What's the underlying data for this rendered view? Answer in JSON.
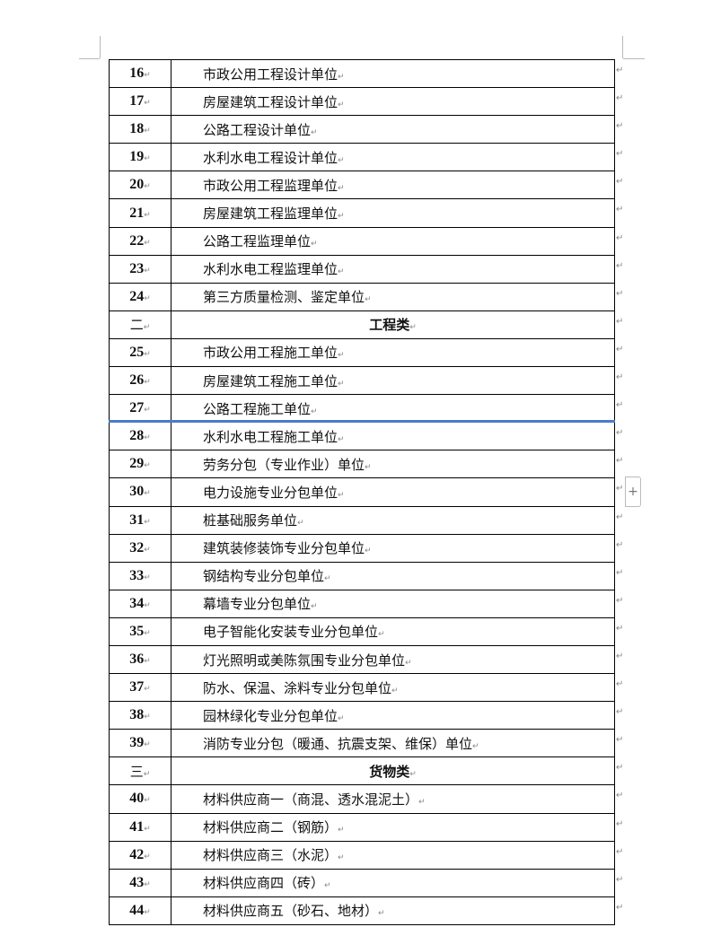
{
  "rows": [
    {
      "num": "16",
      "name": "市政公用工程设计单位"
    },
    {
      "num": "17",
      "name": "房屋建筑工程设计单位"
    },
    {
      "num": "18",
      "name": "公路工程设计单位"
    },
    {
      "num": "19",
      "name": "水利水电工程设计单位"
    },
    {
      "num": "20",
      "name": "市政公用工程监理单位"
    },
    {
      "num": "21",
      "name": "房屋建筑工程监理单位"
    },
    {
      "num": "22",
      "name": "公路工程监理单位"
    },
    {
      "num": "23",
      "name": "水利水电工程监理单位"
    },
    {
      "num": "24",
      "name": "第三方质量检测、鉴定单位"
    },
    {
      "num": "二",
      "name": "工程类",
      "section": true
    },
    {
      "num": "25",
      "name": "市政公用工程施工单位"
    },
    {
      "num": "26",
      "name": "房屋建筑工程施工单位"
    },
    {
      "num": "27",
      "name": "公路工程施工单位"
    },
    {
      "num": "28",
      "name": "水利水电工程施工单位"
    },
    {
      "num": "29",
      "name": "劳务分包（专业作业）单位"
    },
    {
      "num": "30",
      "name": "电力设施专业分包单位"
    },
    {
      "num": "31",
      "name": "桩基础服务单位"
    },
    {
      "num": "32",
      "name": "建筑装修装饰专业分包单位"
    },
    {
      "num": "33",
      "name": "钢结构专业分包单位"
    },
    {
      "num": "34",
      "name": "幕墙专业分包单位"
    },
    {
      "num": "35",
      "name": "电子智能化安装专业分包单位"
    },
    {
      "num": "36",
      "name": "灯光照明或美陈氛围专业分包单位"
    },
    {
      "num": "37",
      "name": "防水、保温、涂料专业分包单位"
    },
    {
      "num": "38",
      "name": "园林绿化专业分包单位"
    },
    {
      "num": "39",
      "name": "消防专业分包（暖通、抗震支架、维保）单位"
    },
    {
      "num": "三",
      "name": "货物类",
      "section": true
    },
    {
      "num": "40",
      "name": "材料供应商一（商混、透水混泥土）"
    },
    {
      "num": "41",
      "name": "材料供应商二（钢筋）"
    },
    {
      "num": "42",
      "name": "材料供应商三（水泥）"
    },
    {
      "num": "43",
      "name": "材料供应商四（砖）"
    },
    {
      "num": "44",
      "name": "材料供应商五（砂石、地材）"
    }
  ],
  "marks": {
    "paragraph": "↵",
    "add_row": "+"
  },
  "colors": {
    "selection_line": "#4a7cc7"
  }
}
